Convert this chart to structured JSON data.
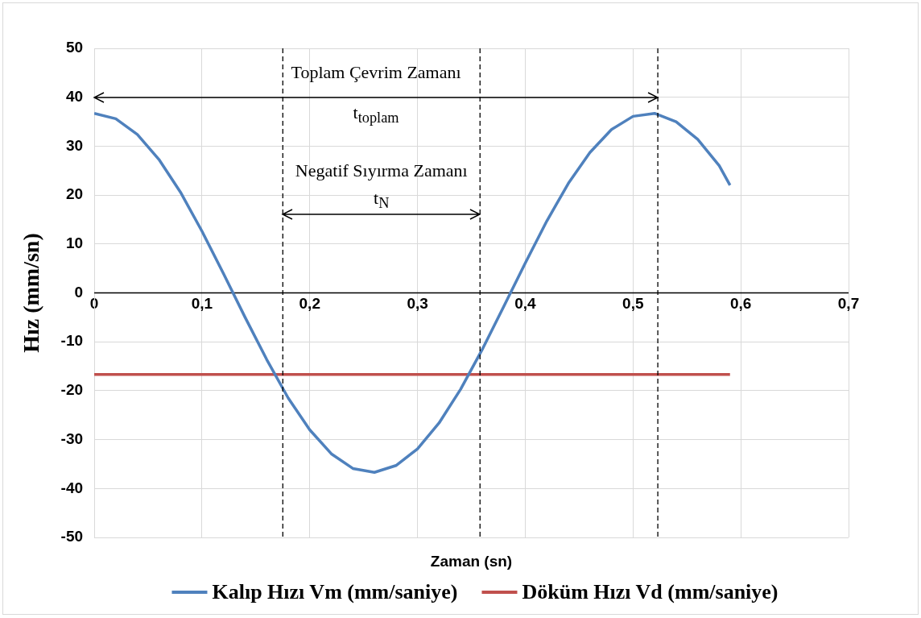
{
  "chart_data": {
    "type": "line",
    "xlabel": "Zaman (sn)",
    "ylabel": "Hız (mm/sn)",
    "xlim": [
      0,
      0.7
    ],
    "xticks": [
      {
        "value": 0,
        "label": "0"
      },
      {
        "value": 0.1,
        "label": "0,1"
      },
      {
        "value": 0.2,
        "label": "0,2"
      },
      {
        "value": 0.3,
        "label": "0,3"
      },
      {
        "value": 0.4,
        "label": "0,4"
      },
      {
        "value": 0.5,
        "label": "0,5"
      },
      {
        "value": 0.6,
        "label": "0,6"
      },
      {
        "value": 0.7,
        "label": "0,7"
      }
    ],
    "ylim": [
      -50,
      50
    ],
    "yticks": [
      -50,
      -40,
      -30,
      -20,
      -10,
      0,
      10,
      20,
      30,
      40,
      50
    ],
    "grid": true,
    "legend": "bottom",
    "marker": "none",
    "line_style": "solid",
    "series": [
      {
        "name": "Kalıp Hızı Vm (mm/saniye)",
        "color": "#4f81bd",
        "x": [
          0,
          0.02,
          0.04,
          0.06,
          0.08,
          0.1,
          0.12,
          0.14,
          0.16,
          0.18,
          0.2,
          0.22,
          0.24,
          0.26,
          0.28,
          0.3,
          0.32,
          0.34,
          0.36,
          0.38,
          0.4,
          0.42,
          0.44,
          0.46,
          0.48,
          0.5,
          0.52,
          0.54,
          0.56,
          0.58,
          0.59
        ],
        "values": [
          36.7,
          35.6,
          32.4,
          27.3,
          20.6,
          12.6,
          3.9,
          -5,
          -13.6,
          -21.5,
          -28,
          -32.9,
          -35.9,
          -36.7,
          -35.3,
          -31.9,
          -26.6,
          -19.7,
          -11.6,
          -2.8,
          6.1,
          14.7,
          22.4,
          28.7,
          33.4,
          36.1,
          36.7,
          35,
          31.4,
          26,
          22
        ]
      },
      {
        "name": "Döküm Hızı Vd (mm/saniye)",
        "color": "#c0504d",
        "x": [
          0,
          0.59
        ],
        "values": [
          -16.7,
          -16.7
        ]
      }
    ],
    "ref_lines": [
      {
        "axis": "x",
        "value": 0.175,
        "color": "#000000",
        "line_style": "dashed"
      },
      {
        "axis": "x",
        "value": 0.358,
        "color": "#000000",
        "line_style": "dashed"
      },
      {
        "axis": "x",
        "value": 0.523,
        "color": "#000000",
        "line_style": "dashed"
      }
    ],
    "annotations": [
      "Toplam Çevrim Zamanı",
      "t$_{toplam}$",
      "Negatif Sıyırma Zamanı",
      "t$_{N}$"
    ]
  }
}
